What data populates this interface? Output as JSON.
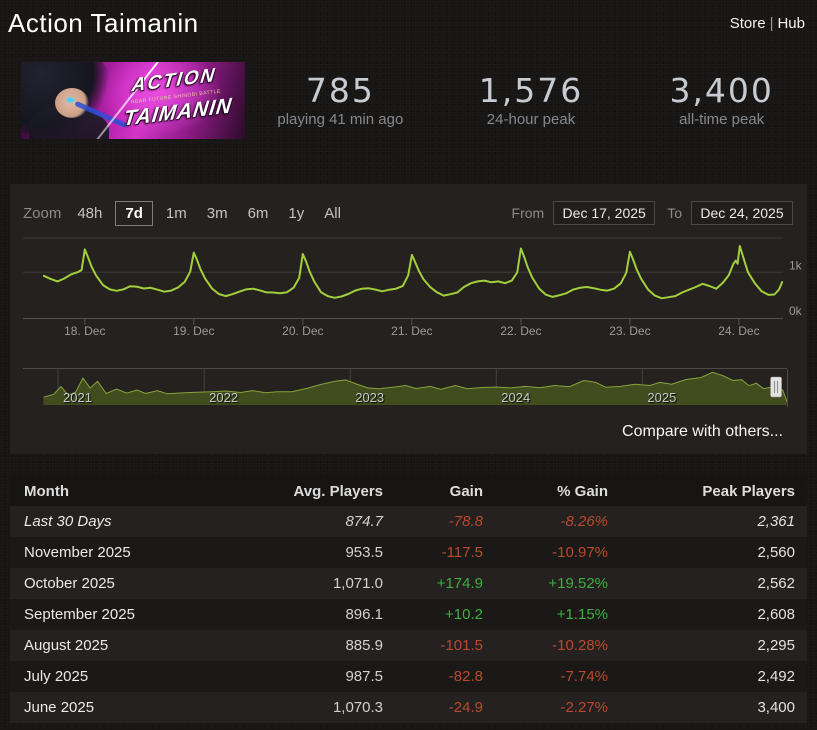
{
  "header": {
    "title": "Action Taimanin",
    "store_label": "Store",
    "hub_label": "Hub",
    "separator": "|"
  },
  "banner": {
    "title_line1": "ACTION",
    "title_line2": "TAIMANIN",
    "subtitle": "NEAR FUTURE SHINOBI BATTLE"
  },
  "stats": [
    {
      "value": "785",
      "label": "playing 41 min ago"
    },
    {
      "value": "1,576",
      "label": "24-hour peak"
    },
    {
      "value": "3,400",
      "label": "all-time peak"
    }
  ],
  "chart_controls": {
    "zoom_label": "Zoom",
    "ranges": [
      "48h",
      "7d",
      "1m",
      "3m",
      "6m",
      "1y",
      "All"
    ],
    "active_range": "7d",
    "from_label": "From",
    "from_value": "Dec 17, 2025",
    "to_label": "To",
    "to_value": "Dec 24, 2025"
  },
  "colors": {
    "line": "#a2cf3c",
    "grid": "#3b3936",
    "axis": "#55534f",
    "tick_text": "#9b9b98",
    "nav_fill": "#414d1e",
    "nav_stroke": "#87a33c",
    "nav_grid": "#45443c",
    "nav_outline": "#4d4b48",
    "handle": "#e2e2e2",
    "positive": "#3eae3e",
    "negative": "#b94a2b"
  },
  "chart_data": [
    {
      "type": "line",
      "name": "players-last-7-days",
      "xlabel": "date",
      "ylabel": "players",
      "xlim": [
        -4.6,
        162.7
      ],
      "ylim": [
        0,
        1750
      ],
      "x_unit": "hours from Dec 17 2025 15:00",
      "x_ticks": [
        {
          "t": 9,
          "label": "18. Dec"
        },
        {
          "t": 33,
          "label": "19. Dec"
        },
        {
          "t": 57,
          "label": "20. Dec"
        },
        {
          "t": 81,
          "label": "21. Dec"
        },
        {
          "t": 105,
          "label": "22. Dec"
        },
        {
          "t": 129,
          "label": "23. Dec"
        },
        {
          "t": 153,
          "label": "24. Dec"
        }
      ],
      "y_ticks": [
        {
          "v": 1000,
          "label": "1k"
        },
        {
          "v": 0,
          "label": "0k"
        }
      ],
      "y_gridlines": [
        1000
      ],
      "points": [
        [
          0,
          920
        ],
        [
          1.5,
          855
        ],
        [
          3,
          800
        ],
        [
          4.5,
          865
        ],
        [
          6,
          955
        ],
        [
          7.5,
          1005
        ],
        [
          8.3,
          1050
        ],
        [
          9,
          1500
        ],
        [
          9.7,
          1330
        ],
        [
          10.5,
          1120
        ],
        [
          11.5,
          930
        ],
        [
          13,
          720
        ],
        [
          14.5,
          625
        ],
        [
          16,
          595
        ],
        [
          17.5,
          625
        ],
        [
          19,
          695
        ],
        [
          20.5,
          685
        ],
        [
          22,
          645
        ],
        [
          23.5,
          660
        ],
        [
          25,
          620
        ],
        [
          26.5,
          575
        ],
        [
          28,
          600
        ],
        [
          29.5,
          665
        ],
        [
          31,
          790
        ],
        [
          32.2,
          1010
        ],
        [
          33,
          1430
        ],
        [
          33.7,
          1270
        ],
        [
          34.5,
          1060
        ],
        [
          35.5,
          860
        ],
        [
          37,
          645
        ],
        [
          38.5,
          525
        ],
        [
          40,
          478
        ],
        [
          41.5,
          520
        ],
        [
          43,
          575
        ],
        [
          44.5,
          625
        ],
        [
          46,
          640
        ],
        [
          47.5,
          605
        ],
        [
          49,
          560
        ],
        [
          50.5,
          558
        ],
        [
          52,
          540
        ],
        [
          53.5,
          562
        ],
        [
          55,
          665
        ],
        [
          56.2,
          880
        ],
        [
          57,
          1400
        ],
        [
          57.7,
          1240
        ],
        [
          58.5,
          1020
        ],
        [
          59.5,
          800
        ],
        [
          61,
          565
        ],
        [
          62.5,
          478
        ],
        [
          64,
          442
        ],
        [
          65.5,
          470
        ],
        [
          67,
          525
        ],
        [
          68.5,
          600
        ],
        [
          70,
          642
        ],
        [
          71.5,
          650
        ],
        [
          73,
          622
        ],
        [
          74.5,
          585
        ],
        [
          76,
          618
        ],
        [
          77.5,
          640
        ],
        [
          79,
          702
        ],
        [
          80.2,
          935
        ],
        [
          81,
          1380
        ],
        [
          81.7,
          1230
        ],
        [
          82.5,
          1040
        ],
        [
          83.5,
          855
        ],
        [
          85,
          680
        ],
        [
          86.5,
          565
        ],
        [
          88,
          490
        ],
        [
          89.5,
          520
        ],
        [
          91,
          558
        ],
        [
          92.5,
          680
        ],
        [
          94,
          762
        ],
        [
          95.5,
          800
        ],
        [
          97,
          818
        ],
        [
          98.5,
          782
        ],
        [
          100,
          800
        ],
        [
          101.5,
          762
        ],
        [
          103,
          818
        ],
        [
          104.2,
          995
        ],
        [
          105,
          1520
        ],
        [
          105.7,
          1340
        ],
        [
          106.5,
          1110
        ],
        [
          107.5,
          885
        ],
        [
          109,
          645
        ],
        [
          110.5,
          510
        ],
        [
          112,
          462
        ],
        [
          113.5,
          498
        ],
        [
          115,
          540
        ],
        [
          116.5,
          622
        ],
        [
          118,
          660
        ],
        [
          119.5,
          678
        ],
        [
          121,
          652
        ],
        [
          122.5,
          618
        ],
        [
          124,
          600
        ],
        [
          125.5,
          640
        ],
        [
          127,
          758
        ],
        [
          128.2,
          990
        ],
        [
          129,
          1450
        ],
        [
          129.7,
          1280
        ],
        [
          130.5,
          1060
        ],
        [
          131.5,
          852
        ],
        [
          133,
          622
        ],
        [
          134.5,
          490
        ],
        [
          136,
          432
        ],
        [
          137.5,
          455
        ],
        [
          139,
          480
        ],
        [
          140.5,
          558
        ],
        [
          142,
          620
        ],
        [
          143.5,
          678
        ],
        [
          145,
          748
        ],
        [
          146.5,
          700
        ],
        [
          148,
          642
        ],
        [
          149.5,
          775
        ],
        [
          150.8,
          940
        ],
        [
          151.8,
          1190
        ],
        [
          152.3,
          1255
        ],
        [
          152.7,
          1185
        ],
        [
          153.2,
          1576
        ],
        [
          154,
          1310
        ],
        [
          155,
          1000
        ],
        [
          156.5,
          762
        ],
        [
          158,
          585
        ],
        [
          159.5,
          505
        ],
        [
          160.8,
          515
        ],
        [
          161.8,
          618
        ],
        [
          162.5,
          785
        ]
      ]
    },
    {
      "type": "area",
      "name": "all-time-navigator",
      "xlim": [
        2020.76,
        2025.99
      ],
      "ylim": [
        0,
        1750
      ],
      "x_unit": "year",
      "x_ticks": [
        {
          "t": 2021,
          "label": "2021"
        },
        {
          "t": 2022,
          "label": "2022"
        },
        {
          "t": 2023,
          "label": "2023"
        },
        {
          "t": 2024,
          "label": "2024"
        },
        {
          "t": 2025,
          "label": "2025"
        }
      ],
      "handle_position": 0.985,
      "points": [
        [
          2020.9,
          380
        ],
        [
          2020.97,
          520
        ],
        [
          2021.02,
          900
        ],
        [
          2021.07,
          470
        ],
        [
          2021.12,
          620
        ],
        [
          2021.17,
          1310
        ],
        [
          2021.22,
          820
        ],
        [
          2021.27,
          1150
        ],
        [
          2021.33,
          560
        ],
        [
          2021.4,
          780
        ],
        [
          2021.47,
          580
        ],
        [
          2021.54,
          730
        ],
        [
          2021.6,
          560
        ],
        [
          2021.68,
          700
        ],
        [
          2021.75,
          545
        ],
        [
          2021.85,
          590
        ],
        [
          2021.95,
          615
        ],
        [
          2022.05,
          640
        ],
        [
          2022.15,
          680
        ],
        [
          2022.25,
          610
        ],
        [
          2022.33,
          700
        ],
        [
          2022.42,
          600
        ],
        [
          2022.5,
          648
        ],
        [
          2022.6,
          640
        ],
        [
          2022.7,
          800
        ],
        [
          2022.8,
          1000
        ],
        [
          2022.9,
          1160
        ],
        [
          2022.97,
          1215
        ],
        [
          2023.05,
          1000
        ],
        [
          2023.12,
          830
        ],
        [
          2023.2,
          790
        ],
        [
          2023.3,
          870
        ],
        [
          2023.38,
          950
        ],
        [
          2023.45,
          800
        ],
        [
          2023.55,
          905
        ],
        [
          2023.62,
          760
        ],
        [
          2023.72,
          950
        ],
        [
          2023.8,
          790
        ],
        [
          2023.9,
          850
        ],
        [
          2024.0,
          870
        ],
        [
          2024.1,
          830
        ],
        [
          2024.2,
          905
        ],
        [
          2024.3,
          840
        ],
        [
          2024.4,
          950
        ],
        [
          2024.5,
          890
        ],
        [
          2024.6,
          1190
        ],
        [
          2024.68,
          1100
        ],
        [
          2024.75,
          860
        ],
        [
          2024.85,
          905
        ],
        [
          2024.95,
          1010
        ],
        [
          2025.05,
          950
        ],
        [
          2025.12,
          1100
        ],
        [
          2025.2,
          1010
        ],
        [
          2025.3,
          1240
        ],
        [
          2025.4,
          1330
        ],
        [
          2025.48,
          1590
        ],
        [
          2025.55,
          1430
        ],
        [
          2025.62,
          1190
        ],
        [
          2025.68,
          1230
        ],
        [
          2025.73,
          940
        ],
        [
          2025.78,
          1060
        ],
        [
          2025.83,
          790
        ],
        [
          2025.88,
          860
        ],
        [
          2025.93,
          700
        ],
        [
          2025.96,
          740
        ],
        [
          2025.99,
          170
        ]
      ]
    }
  ],
  "compare_label": "Compare with others...",
  "table": {
    "columns": [
      "Month",
      "Avg. Players",
      "Gain",
      "% Gain",
      "Peak Players"
    ],
    "rows": [
      {
        "month": "Last 30 Days",
        "avg": "874.7",
        "gain": "-78.8",
        "pct": "-8.26%",
        "peak": "2,361",
        "italic": true
      },
      {
        "month": "November 2025",
        "avg": "953.5",
        "gain": "-117.5",
        "pct": "-10.97%",
        "peak": "2,560",
        "italic": false
      },
      {
        "month": "October 2025",
        "avg": "1,071.0",
        "gain": "+174.9",
        "pct": "+19.52%",
        "peak": "2,562",
        "italic": false
      },
      {
        "month": "September 2025",
        "avg": "896.1",
        "gain": "+10.2",
        "pct": "+1.15%",
        "peak": "2,608",
        "italic": false
      },
      {
        "month": "August 2025",
        "avg": "885.9",
        "gain": "-101.5",
        "pct": "-10.28%",
        "peak": "2,295",
        "italic": false
      },
      {
        "month": "July 2025",
        "avg": "987.5",
        "gain": "-82.8",
        "pct": "-7.74%",
        "peak": "2,492",
        "italic": false
      },
      {
        "month": "June 2025",
        "avg": "1,070.3",
        "gain": "-24.9",
        "pct": "-2.27%",
        "peak": "3,400",
        "italic": false
      }
    ]
  }
}
